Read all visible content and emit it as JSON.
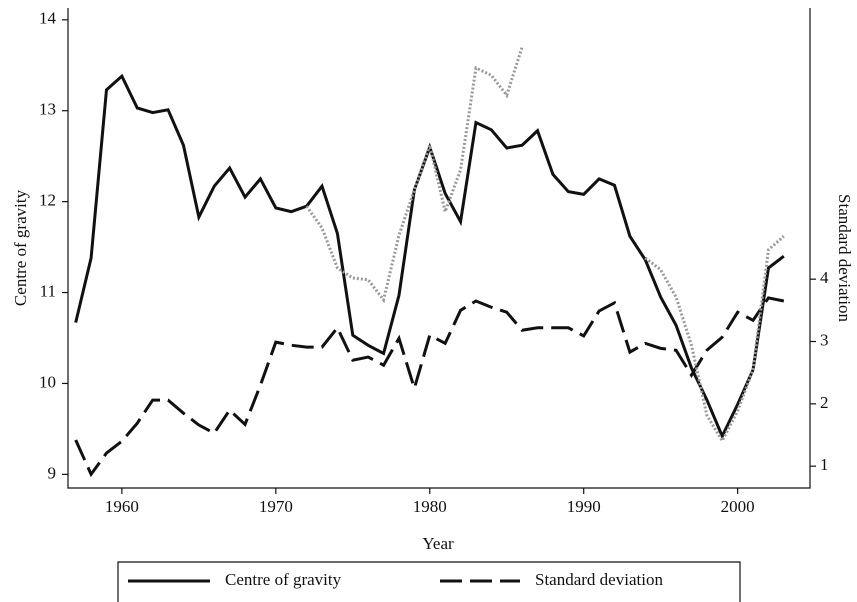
{
  "chart_data": {
    "type": "line",
    "x_label": "Year",
    "y_label": "Centre of gravity",
    "y2_label": "Standard deviation",
    "x": [
      1957,
      1958,
      1959,
      1960,
      1961,
      1962,
      1963,
      1964,
      1965,
      1966,
      1967,
      1968,
      1969,
      1970,
      1971,
      1972,
      1973,
      1974,
      1975,
      1976,
      1977,
      1978,
      1979,
      1980,
      1981,
      1982,
      1983,
      1984,
      1985,
      1986,
      1987,
      1988,
      1989,
      1990,
      1991,
      1992,
      1993,
      1994,
      1995,
      1996,
      1997,
      1998,
      1999,
      2000,
      2001,
      2002,
      2003
    ],
    "series": [
      {
        "name": "Centre of gravity",
        "color": "#111111",
        "style": "solid",
        "values": [
          10.67,
          11.38,
          13.23,
          13.38,
          13.03,
          12.98,
          13.01,
          12.62,
          11.83,
          12.17,
          12.37,
          12.05,
          12.25,
          11.93,
          11.89,
          11.95,
          12.17,
          11.65,
          10.53,
          10.42,
          10.33,
          10.97,
          12.13,
          12.6,
          12.09,
          11.78,
          12.87,
          12.79,
          12.59,
          12.62,
          12.78,
          12.3,
          12.11,
          12.08,
          12.25,
          12.18,
          11.62,
          11.36,
          10.95,
          10.64,
          10.17,
          9.82,
          9.42,
          9.77,
          10.15,
          11.27,
          11.4
        ]
      },
      {
        "name": "Standard deviation",
        "color": "#111111",
        "style": "dashed",
        "axis": "y2",
        "values": [
          1.42,
          0.87,
          1.21,
          1.4,
          1.69,
          2.06,
          2.06,
          1.85,
          1.66,
          1.53,
          1.9,
          1.67,
          2.3,
          2.99,
          2.94,
          2.91,
          2.91,
          3.22,
          2.7,
          2.75,
          2.62,
          3.05,
          2.25,
          3.1,
          2.97,
          3.5,
          3.65,
          3.55,
          3.47,
          3.18,
          3.22,
          3.22,
          3.22,
          3.09,
          3.49,
          3.62,
          2.83,
          2.97,
          2.89,
          2.86,
          2.46,
          2.86,
          3.07,
          3.47,
          3.34,
          3.7,
          3.65
        ]
      },
      {
        "color": "#999999",
        "style": "dotted",
        "values": [
          null,
          null,
          null,
          null,
          null,
          null,
          null,
          null,
          null,
          null,
          null,
          null,
          null,
          null,
          null,
          11.95,
          11.71,
          11.27,
          11.16,
          11.14,
          10.92,
          11.63,
          12.13,
          12.62,
          11.89,
          12.35,
          13.47,
          13.39,
          13.17,
          13.7,
          null,
          null,
          null,
          null,
          null,
          null,
          null,
          11.38,
          11.25,
          10.95,
          10.42,
          9.65,
          9.37,
          9.7,
          10.15,
          11.47,
          11.62
        ]
      }
    ],
    "xlim": [
      1956.5,
      2004.7
    ],
    "xticks": [
      1960,
      1970,
      1980,
      1990,
      2000
    ],
    "ylim": [
      8.85,
      14.13
    ],
    "yticks": [
      9,
      10,
      11,
      12,
      13,
      14
    ],
    "y2lim": [
      0.65,
      8.35
    ],
    "y2ticks": [
      1,
      2,
      3,
      4
    ],
    "grid": false,
    "legend": "bottom"
  }
}
